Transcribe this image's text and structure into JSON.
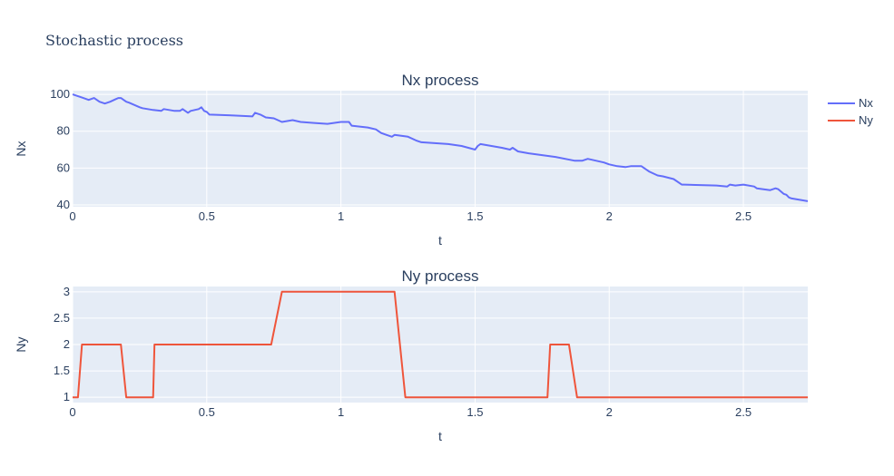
{
  "figure_title": "Stochastic process",
  "legend": [
    {
      "name": "Nx",
      "color": "#636efa"
    },
    {
      "name": "Ny",
      "color": "#ef553b"
    }
  ],
  "chart_data": [
    {
      "type": "line",
      "title": "Nx process",
      "xlabel": "t",
      "ylabel": "Nx",
      "xlim": [
        0,
        2.74
      ],
      "ylim": [
        39,
        102
      ],
      "xticks": [
        0,
        0.5,
        1,
        1.5,
        2,
        2.5
      ],
      "xtick_labels": [
        "0",
        "0.5",
        "1",
        "1.5",
        "2",
        "2.5"
      ],
      "yticks": [
        40,
        60,
        80,
        100
      ],
      "ytick_labels": [
        "40",
        "60",
        "80",
        "100"
      ],
      "grid": true,
      "series": [
        {
          "name": "Nx",
          "color": "#636efa",
          "x": [
            0,
            0.02,
            0.04,
            0.06,
            0.08,
            0.1,
            0.12,
            0.14,
            0.17,
            0.18,
            0.2,
            0.21,
            0.25,
            0.26,
            0.3,
            0.33,
            0.34,
            0.38,
            0.4,
            0.41,
            0.43,
            0.44,
            0.47,
            0.48,
            0.49,
            0.5,
            0.51,
            0.6,
            0.67,
            0.68,
            0.7,
            0.72,
            0.75,
            0.78,
            0.82,
            0.85,
            0.9,
            0.95,
            1.0,
            1.03,
            1.04,
            1.1,
            1.13,
            1.15,
            1.17,
            1.19,
            1.2,
            1.25,
            1.28,
            1.3,
            1.35,
            1.4,
            1.45,
            1.5,
            1.51,
            1.52,
            1.6,
            1.63,
            1.64,
            1.66,
            1.7,
            1.8,
            1.87,
            1.9,
            1.92,
            1.98,
            2.0,
            2.03,
            2.06,
            2.08,
            2.12,
            2.15,
            2.18,
            2.2,
            2.24,
            2.27,
            2.28,
            2.4,
            2.44,
            2.45,
            2.47,
            2.5,
            2.54,
            2.55,
            2.6,
            2.62,
            2.63,
            2.65,
            2.66,
            2.67,
            2.68,
            2.7,
            2.74
          ],
          "y": [
            100,
            99,
            98,
            97,
            98,
            96,
            95,
            96,
            98,
            98,
            96,
            95.5,
            93,
            92.5,
            91.5,
            91,
            92,
            91,
            91,
            92,
            90,
            91,
            92,
            93,
            91,
            90.5,
            89,
            88.5,
            88,
            90,
            89,
            87.5,
            87,
            85,
            86,
            85,
            84.5,
            84,
            85,
            85,
            83,
            82,
            81,
            79,
            78,
            77,
            78,
            77,
            75,
            74,
            73.5,
            73,
            72,
            70,
            72,
            73,
            71,
            70,
            71,
            69,
            68,
            66,
            64,
            64,
            65,
            63,
            62,
            61,
            60.5,
            61,
            61,
            58,
            56,
            55.5,
            54,
            51,
            51,
            50.5,
            50,
            51,
            50.5,
            51,
            50,
            49,
            48,
            49,
            48.5,
            46,
            45.5,
            44,
            43.5,
            43,
            42
          ]
        }
      ]
    },
    {
      "type": "line",
      "title": "Ny process",
      "xlabel": "t",
      "ylabel": "Ny",
      "xlim": [
        0,
        2.74
      ],
      "ylim": [
        0.9,
        3.1
      ],
      "xticks": [
        0,
        0.5,
        1,
        1.5,
        2,
        2.5
      ],
      "xtick_labels": [
        "0",
        "0.5",
        "1",
        "1.5",
        "2",
        "2.5"
      ],
      "yticks": [
        1,
        1.5,
        2,
        2.5,
        3
      ],
      "ytick_labels": [
        "1",
        "1.5",
        "2",
        "2.5",
        "3"
      ],
      "grid": true,
      "series": [
        {
          "name": "Ny",
          "color": "#ef553b",
          "x": [
            0,
            0.02,
            0.035,
            0.18,
            0.2,
            0.3,
            0.305,
            0.74,
            0.78,
            1.2,
            1.24,
            1.77,
            1.78,
            1.85,
            1.88,
            2.74
          ],
          "y": [
            1,
            1,
            2,
            2,
            1,
            1,
            2,
            2,
            3,
            3,
            1,
            1,
            2,
            2,
            1,
            1
          ]
        }
      ]
    }
  ]
}
